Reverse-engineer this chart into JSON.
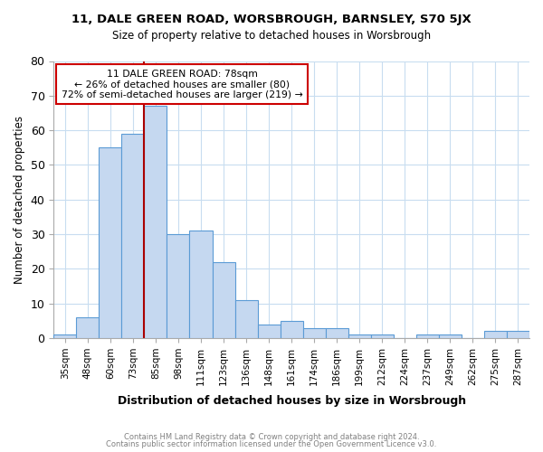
{
  "title_line1": "11, DALE GREEN ROAD, WORSBROUGH, BARNSLEY, S70 5JX",
  "title_line2": "Size of property relative to detached houses in Worsbrough",
  "xlabel": "Distribution of detached houses by size in Worsbrough",
  "ylabel": "Number of detached properties",
  "bin_labels": [
    "35sqm",
    "48sqm",
    "60sqm",
    "73sqm",
    "85sqm",
    "98sqm",
    "111sqm",
    "123sqm",
    "136sqm",
    "148sqm",
    "161sqm",
    "174sqm",
    "186sqm",
    "199sqm",
    "212sqm",
    "224sqm",
    "237sqm",
    "249sqm",
    "262sqm",
    "275sqm",
    "287sqm"
  ],
  "bar_heights": [
    1,
    6,
    55,
    59,
    67,
    30,
    31,
    22,
    11,
    4,
    5,
    3,
    3,
    1,
    1,
    0,
    1,
    1,
    0,
    2,
    2
  ],
  "bar_color": "#c5d8f0",
  "bar_edge_color": "#5b9bd5",
  "property_label": "11 DALE GREEN ROAD: 78sqm",
  "annotation_line1": "← 26% of detached houses are smaller (80)",
  "annotation_line2": "72% of semi-detached houses are larger (219) →",
  "vline_color": "#aa0000",
  "annotation_box_edge_color": "#cc0000",
  "footer_line1": "Contains HM Land Registry data © Crown copyright and database right 2024.",
  "footer_line2": "Contains public sector information licensed under the Open Government Licence v3.0.",
  "ylim": [
    0,
    80
  ],
  "yticks": [
    0,
    10,
    20,
    30,
    40,
    50,
    60,
    70,
    80
  ],
  "bg_color": "#ffffff",
  "grid_color": "#c8ddf0"
}
